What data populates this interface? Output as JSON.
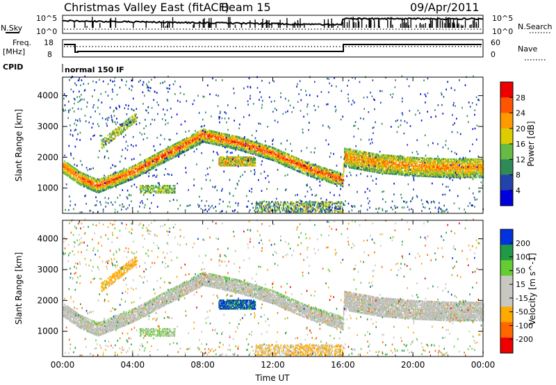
{
  "header": {
    "site": "Christmas Valley East (fitACF)",
    "beam": "Beam 15",
    "date": "09/Apr/2011"
  },
  "top_panels": {
    "nsky": {
      "label": "N.Sky",
      "ticks": [
        "10^5",
        "10^0"
      ]
    },
    "nsearch": {
      "label": "N.Search",
      "ticks": [
        "10^5",
        "10^0"
      ]
    },
    "freq": {
      "label_line1": "Freq.",
      "label_line2": "[MHz]",
      "ticks": [
        "18",
        "8"
      ]
    },
    "nave": {
      "label": "Nave",
      "ticks": [
        "60",
        "0"
      ]
    },
    "cpid": {
      "label": "CPID",
      "value": "normal 150 IF"
    }
  },
  "chart_data": [
    {
      "type": "heatmap",
      "title": "",
      "xlabel": "",
      "ylabel": "Slant Range [km]",
      "xlim": [
        0,
        24
      ],
      "ylim": [
        180,
        4600
      ],
      "x_ticks": [
        "00:00",
        "04:00",
        "08:00",
        "12:00",
        "16:00",
        "20:00",
        "00:00"
      ],
      "y_ticks": [
        1000,
        2000,
        3000,
        4000
      ],
      "colorbar": {
        "label": "Power [dB]",
        "ticks": [
          "28",
          "24",
          "20",
          "16",
          "12",
          "8",
          "4"
        ],
        "range": [
          0,
          30
        ]
      },
      "description_values": {
        "main_band_ridge": [
          [
            0,
            1700
          ],
          [
            1,
            1300
          ],
          [
            2,
            1050
          ],
          [
            4,
            1500
          ],
          [
            6,
            2100
          ],
          [
            8,
            2700
          ],
          [
            10,
            2450
          ],
          [
            12,
            2100
          ],
          [
            14,
            1600
          ],
          [
            16,
            1250
          ],
          [
            16.05,
            2000
          ],
          [
            18,
            1800
          ],
          [
            20,
            1700
          ],
          [
            22,
            1650
          ],
          [
            24,
            1650
          ]
        ]
      }
    },
    {
      "type": "heatmap",
      "title": "",
      "xlabel": "Time UT",
      "ylabel": "Slant Range [km]",
      "xlim": [
        0,
        24
      ],
      "ylim": [
        180,
        4600
      ],
      "x_ticks": [
        "00:00",
        "04:00",
        "08:00",
        "12:00",
        "16:00",
        "20:00",
        "00:00"
      ],
      "y_ticks": [
        1000,
        2000,
        3000,
        4000
      ],
      "colorbar": {
        "label": "Velocity [m s^-1]",
        "ticks": [
          "200",
          "100",
          "50",
          "15",
          "-15",
          "-50",
          "-100",
          "-200"
        ],
        "range": [
          -250,
          250
        ]
      }
    }
  ],
  "colors": {
    "power_scale": [
      "#0000dd",
      "#2244aa",
      "#2e8b57",
      "#66bb44",
      "#ddcc00",
      "#ff9900",
      "#ff5500",
      "#ee0000"
    ],
    "velocity_scale": [
      "#ee0000",
      "#ff6600",
      "#ffaa00",
      "#c8c8c0",
      "#c8c8c0",
      "#66cc33",
      "#229944",
      "#0033dd"
    ],
    "ground_scatter": "#bebeb8"
  }
}
